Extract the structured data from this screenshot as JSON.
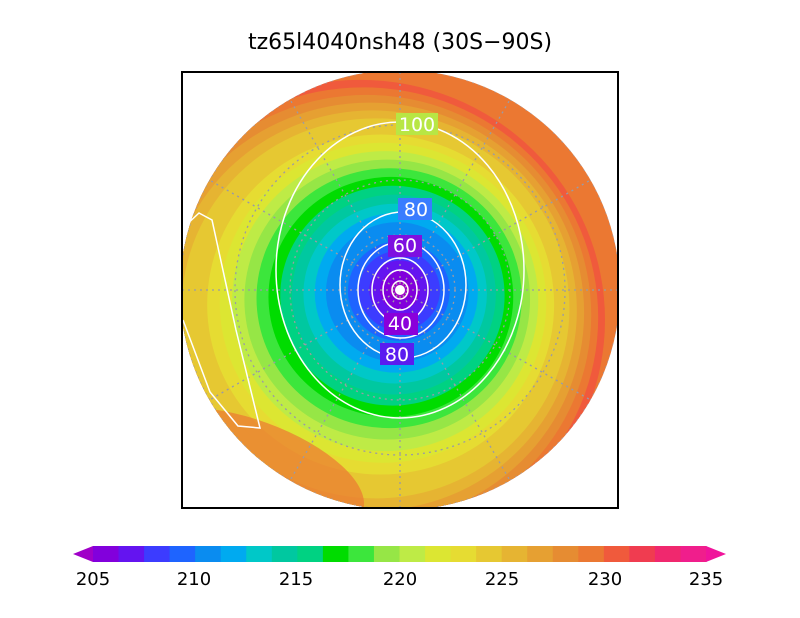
{
  "title": "tz65l4040nsh48 (30S−90S)",
  "map": {
    "projection": "south-polar-stereographic",
    "lat_range": [
      "30S",
      "90S"
    ],
    "graticule": "dotted",
    "contour_color": "#ffffff",
    "contour_labels": [
      {
        "id": "c100",
        "text": "100"
      },
      {
        "id": "c80a",
        "text": "80"
      },
      {
        "id": "c60",
        "text": "60"
      },
      {
        "id": "c40",
        "text": "40"
      },
      {
        "id": "c80b",
        "text": "80"
      }
    ]
  },
  "colorbar": {
    "min": 205,
    "max": 235,
    "step": 1.25,
    "extend": "both",
    "tick_labels": [
      "205",
      "210",
      "215",
      "220",
      "225",
      "230",
      "235"
    ],
    "colors": [
      "#a000c8",
      "#8200dc",
      "#6414f0",
      "#3c3cff",
      "#1e64ff",
      "#0a8cf0",
      "#00aaf0",
      "#00c8c8",
      "#00c8a0",
      "#00d282",
      "#00dc00",
      "#3ce63c",
      "#96e646",
      "#beeb46",
      "#dce632",
      "#e6dc32",
      "#e6c832",
      "#e6b432",
      "#e6a032",
      "#e68c32",
      "#eb7832",
      "#f05a3c",
      "#f03c50",
      "#f0286e",
      "#f01e8c",
      "#f0149b"
    ]
  }
}
